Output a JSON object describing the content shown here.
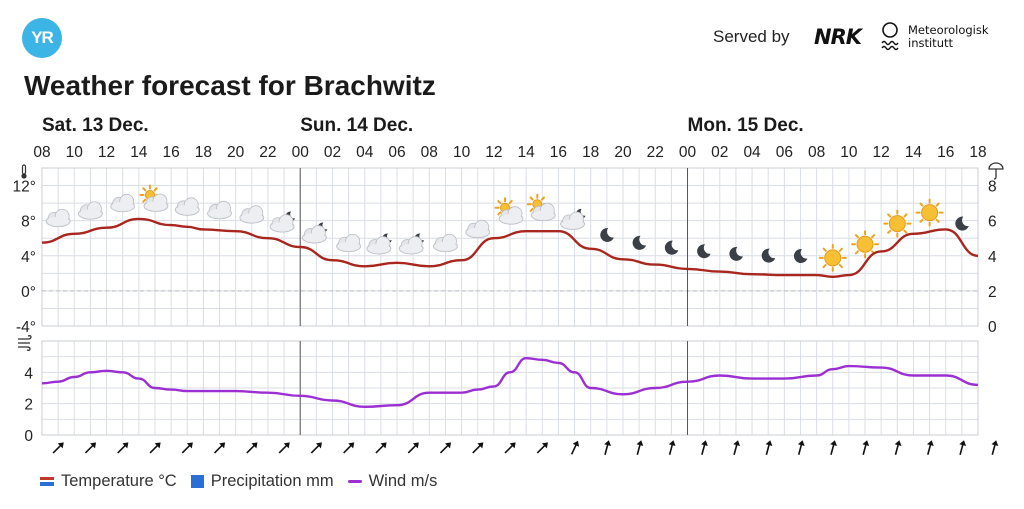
{
  "header": {
    "logo_text": "YR",
    "served_by": "Served by",
    "nrk_logo": "NRK",
    "met_line1": "Meteorologisk",
    "met_line2": "institutt"
  },
  "title": "Weather forecast for Brachwitz",
  "days": [
    {
      "label": "Sat. 13 Dec.",
      "hour_offset": 0
    },
    {
      "label": "Sun. 14 Dec.",
      "hour_offset": 16
    },
    {
      "label": "Mon. 15 Dec.",
      "hour_offset": 40
    }
  ],
  "hour_labels": [
    "08",
    "10",
    "12",
    "14",
    "16",
    "18",
    "20",
    "22",
    "00",
    "02",
    "04",
    "06",
    "08",
    "10",
    "12",
    "14",
    "16",
    "18",
    "20",
    "22",
    "00",
    "02",
    "04",
    "06",
    "08",
    "10",
    "12",
    "14",
    "16",
    "18"
  ],
  "legend": {
    "temperature": "Temperature °C",
    "precipitation": "Precipitation mm",
    "wind": "Wind m/s"
  },
  "colors": {
    "temperature": "#a8261d",
    "wind": "#9b2fd1",
    "precipitation": "#2a6fd6",
    "grid": "#d9dee5",
    "day_divider": "#555555",
    "logo": "#3cb4e6"
  },
  "chart_data": {
    "type": "line",
    "x_unit": "hours from Sat. 13 Dec. 08:00",
    "temperature_axis": {
      "ticks": [
        "12°",
        "8°",
        "4°",
        "0°",
        "-4°"
      ],
      "values": [
        12,
        8,
        4,
        0,
        -4
      ],
      "ylim": [
        -4,
        14
      ]
    },
    "precipitation_axis": {
      "ticks": [
        "8",
        "6",
        "4",
        "2",
        "0"
      ],
      "values": [
        8,
        6,
        4,
        2,
        0
      ]
    },
    "wind_axis": {
      "ticks": [
        "4",
        "2",
        "0"
      ],
      "values": [
        4,
        2,
        0
      ],
      "ylim": [
        0,
        6
      ]
    },
    "series": [
      {
        "name": "Temperature °C",
        "x": [
          0,
          2,
          4,
          6,
          8,
          9,
          10,
          12,
          14,
          16,
          18,
          20,
          22,
          24,
          26,
          28,
          30,
          32,
          34,
          36,
          38,
          40,
          42,
          44,
          46,
          48,
          49,
          50,
          52,
          54,
          56,
          58
        ],
        "y": [
          5.5,
          6.5,
          7.2,
          8.2,
          7.5,
          7.3,
          7.0,
          6.8,
          6.0,
          5.0,
          3.5,
          2.8,
          3.2,
          2.8,
          3.5,
          6.0,
          6.8,
          6.8,
          4.8,
          3.6,
          3.0,
          2.5,
          2.2,
          1.9,
          1.8,
          1.8,
          1.6,
          1.8,
          4.5,
          6.5,
          7.0,
          4.0
        ]
      },
      {
        "name": "Wind m/s",
        "x": [
          0,
          1,
          2,
          3,
          4,
          5,
          6,
          7,
          8,
          9,
          10,
          12,
          14,
          16,
          18,
          20,
          22,
          24,
          26,
          27,
          28,
          29,
          30,
          31,
          32,
          33,
          34,
          36,
          38,
          40,
          42,
          44,
          46,
          48,
          49,
          50,
          52,
          54,
          56,
          58
        ],
        "y": [
          3.3,
          3.4,
          3.7,
          4.0,
          4.1,
          4.0,
          3.6,
          3.0,
          2.9,
          2.8,
          2.8,
          2.8,
          2.7,
          2.5,
          2.2,
          1.8,
          1.9,
          2.7,
          2.7,
          2.9,
          3.1,
          4.0,
          4.9,
          4.8,
          4.6,
          4.0,
          3.0,
          2.6,
          3.0,
          3.4,
          3.8,
          3.6,
          3.6,
          3.8,
          4.2,
          4.4,
          4.3,
          3.8,
          3.8,
          3.2
        ]
      }
    ],
    "wind_direction_arrow_count": 30
  },
  "weather_icons": [
    {
      "hour": 1,
      "icon": "cloud-icon"
    },
    {
      "hour": 3,
      "icon": "cloud-icon"
    },
    {
      "hour": 5,
      "icon": "cloud-icon"
    },
    {
      "hour": 7,
      "icon": "sun-cloud-icon"
    },
    {
      "hour": 9,
      "icon": "cloud-icon"
    },
    {
      "hour": 11,
      "icon": "cloud-icon"
    },
    {
      "hour": 13,
      "icon": "cloud-icon"
    },
    {
      "hour": 15,
      "icon": "moon-cloud-icon"
    },
    {
      "hour": 17,
      "icon": "moon-cloud-icon"
    },
    {
      "hour": 19,
      "icon": "cloud-icon"
    },
    {
      "hour": 21,
      "icon": "moon-cloud-icon"
    },
    {
      "hour": 23,
      "icon": "moon-cloud-icon"
    },
    {
      "hour": 25,
      "icon": "cloud-icon"
    },
    {
      "hour": 27,
      "icon": "cloud-icon"
    },
    {
      "hour": 29,
      "icon": "sun-cloud-icon"
    },
    {
      "hour": 31,
      "icon": "sun-cloud-icon"
    },
    {
      "hour": 33,
      "icon": "moon-cloud-icon"
    },
    {
      "hour": 35,
      "icon": "moon-icon"
    },
    {
      "hour": 37,
      "icon": "moon-icon"
    },
    {
      "hour": 39,
      "icon": "moon-icon"
    },
    {
      "hour": 41,
      "icon": "moon-icon"
    },
    {
      "hour": 43,
      "icon": "moon-icon"
    },
    {
      "hour": 45,
      "icon": "moon-icon"
    },
    {
      "hour": 47,
      "icon": "moon-icon"
    },
    {
      "hour": 49,
      "icon": "sun-icon"
    },
    {
      "hour": 51,
      "icon": "sun-icon"
    },
    {
      "hour": 53,
      "icon": "sun-icon"
    },
    {
      "hour": 55,
      "icon": "sun-icon"
    },
    {
      "hour": 57,
      "icon": "moon-icon"
    }
  ]
}
